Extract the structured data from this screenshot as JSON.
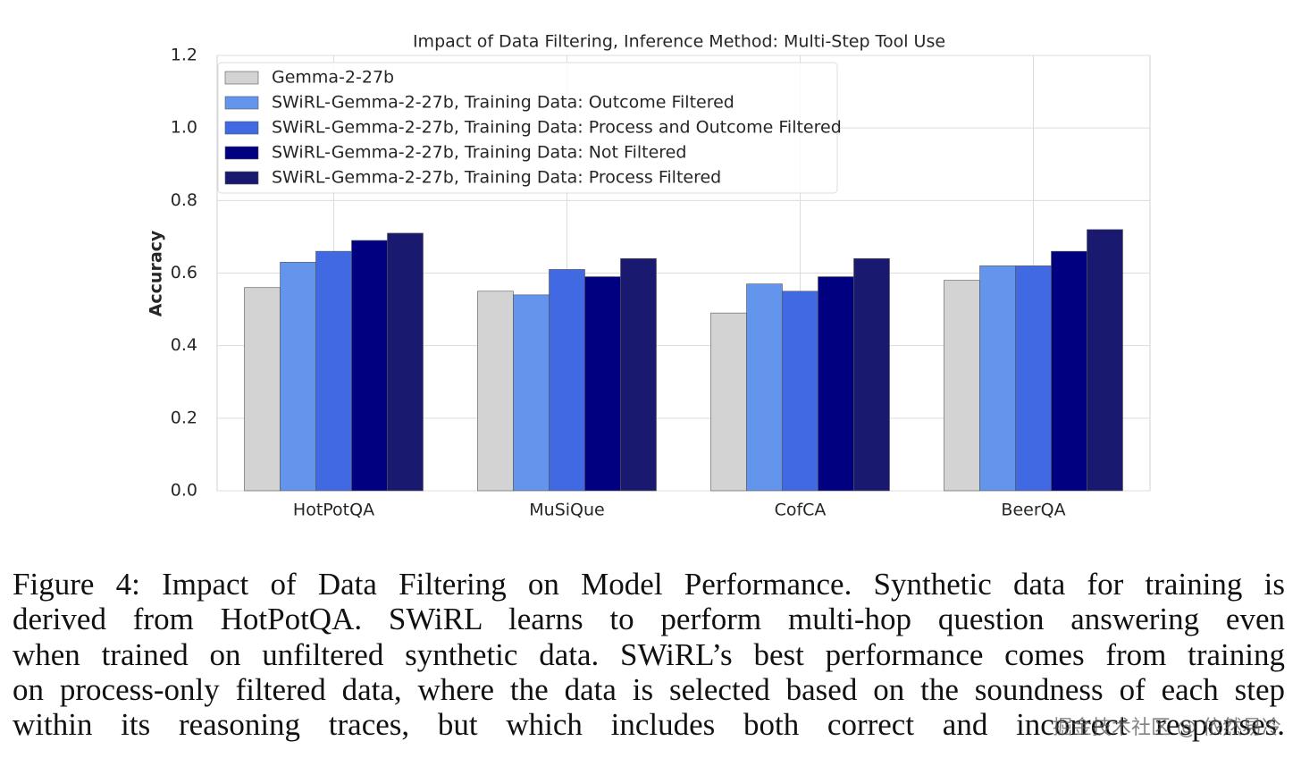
{
  "chart_data": {
    "type": "bar",
    "title": "Impact of Data Filtering, Inference Method: Multi-Step Tool Use",
    "y_label": "Accuracy",
    "categories": [
      "HotPotQA",
      "MuSiQue",
      "CofCA",
      "BeerQA"
    ],
    "series": [
      {
        "name": "Gemma-2-27b",
        "color": "#d3d3d3",
        "values": [
          0.56,
          0.55,
          0.49,
          0.58
        ]
      },
      {
        "name": "SWiRL-Gemma-2-27b, Training Data: Outcome Filtered",
        "color": "#6495ed",
        "values": [
          0.63,
          0.54,
          0.57,
          0.62
        ]
      },
      {
        "name": "SWiRL-Gemma-2-27b, Training Data: Process and Outcome Filtered",
        "color": "#4169e1",
        "values": [
          0.66,
          0.61,
          0.55,
          0.62
        ]
      },
      {
        "name": "SWiRL-Gemma-2-27b, Training Data: Not Filtered",
        "color": "#000080",
        "values": [
          0.69,
          0.59,
          0.59,
          0.66
        ]
      },
      {
        "name": "SWiRL-Gemma-2-27b, Training Data: Process Filtered",
        "color": "#191970",
        "values": [
          0.71,
          0.64,
          0.64,
          0.72
        ]
      }
    ],
    "ylim": [
      0,
      1.2
    ],
    "yticks": [
      {
        "value": 0,
        "label": "0.0"
      },
      0.2,
      0.4,
      0.6,
      0.8,
      {
        "value": 1,
        "label": "1.0"
      },
      1.2
    ],
    "grid": true,
    "legend": "upper left"
  },
  "caption_lines": [
    "Figure 4: Impact of Data Filtering on Model Performance. Synthetic data for training is",
    "derived from HotPotQA. SWiRL learns to perform multi-hop question answering even",
    "when trained on unfiltered synthetic data. SWiRL’s best performance comes from training",
    "on process-only filtered data, where the data is selected based on the soundness of each step",
    "within its reasoning traces, but which includes both correct and incorrect responses."
  ],
  "watermark": "掘金技术社区 @ 依然易冷"
}
